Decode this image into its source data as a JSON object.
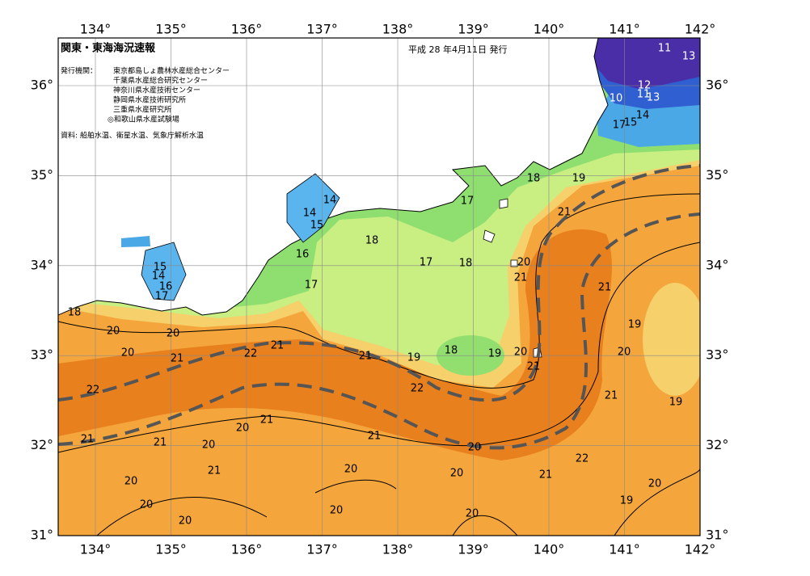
{
  "header": {
    "title": "関東・東海海況速報",
    "date": "平成 28 年4月11日 発行",
    "issuers_label": "発行機関：",
    "issuers": [
      "東京都島しょ農林水産総合センター",
      "千葉県水産総合研究センター",
      "神奈川県水産技術センター",
      "静岡県水産技術研究所",
      "三重県水産研究所",
      "◎和歌山県水産試験場"
    ],
    "source": "資料: 船舶水温、衛星水温、気象庁解析水温"
  },
  "lon_labels": [
    "134°",
    "135°",
    "136°",
    "137°",
    "138°",
    "139°",
    "140°",
    "141°",
    "142°"
  ],
  "lat_labels": [
    "31°",
    "32°",
    "33°",
    "34°",
    "35°",
    "36°"
  ],
  "contour_labels": [
    11,
    13,
    12,
    11,
    13,
    10,
    17,
    15,
    14,
    18,
    19,
    17,
    14,
    14,
    15,
    18,
    17,
    18,
    20,
    21,
    21,
    21,
    19,
    20,
    15,
    14,
    16,
    17,
    16,
    17,
    18,
    20,
    20,
    21,
    22,
    21,
    21,
    19,
    18,
    19,
    20,
    21,
    22,
    22,
    21,
    19,
    21,
    20,
    21,
    21,
    20,
    21,
    20,
    22,
    20,
    20,
    21,
    21,
    20,
    20,
    19,
    20,
    20,
    20,
    20,
    20
  ]
}
